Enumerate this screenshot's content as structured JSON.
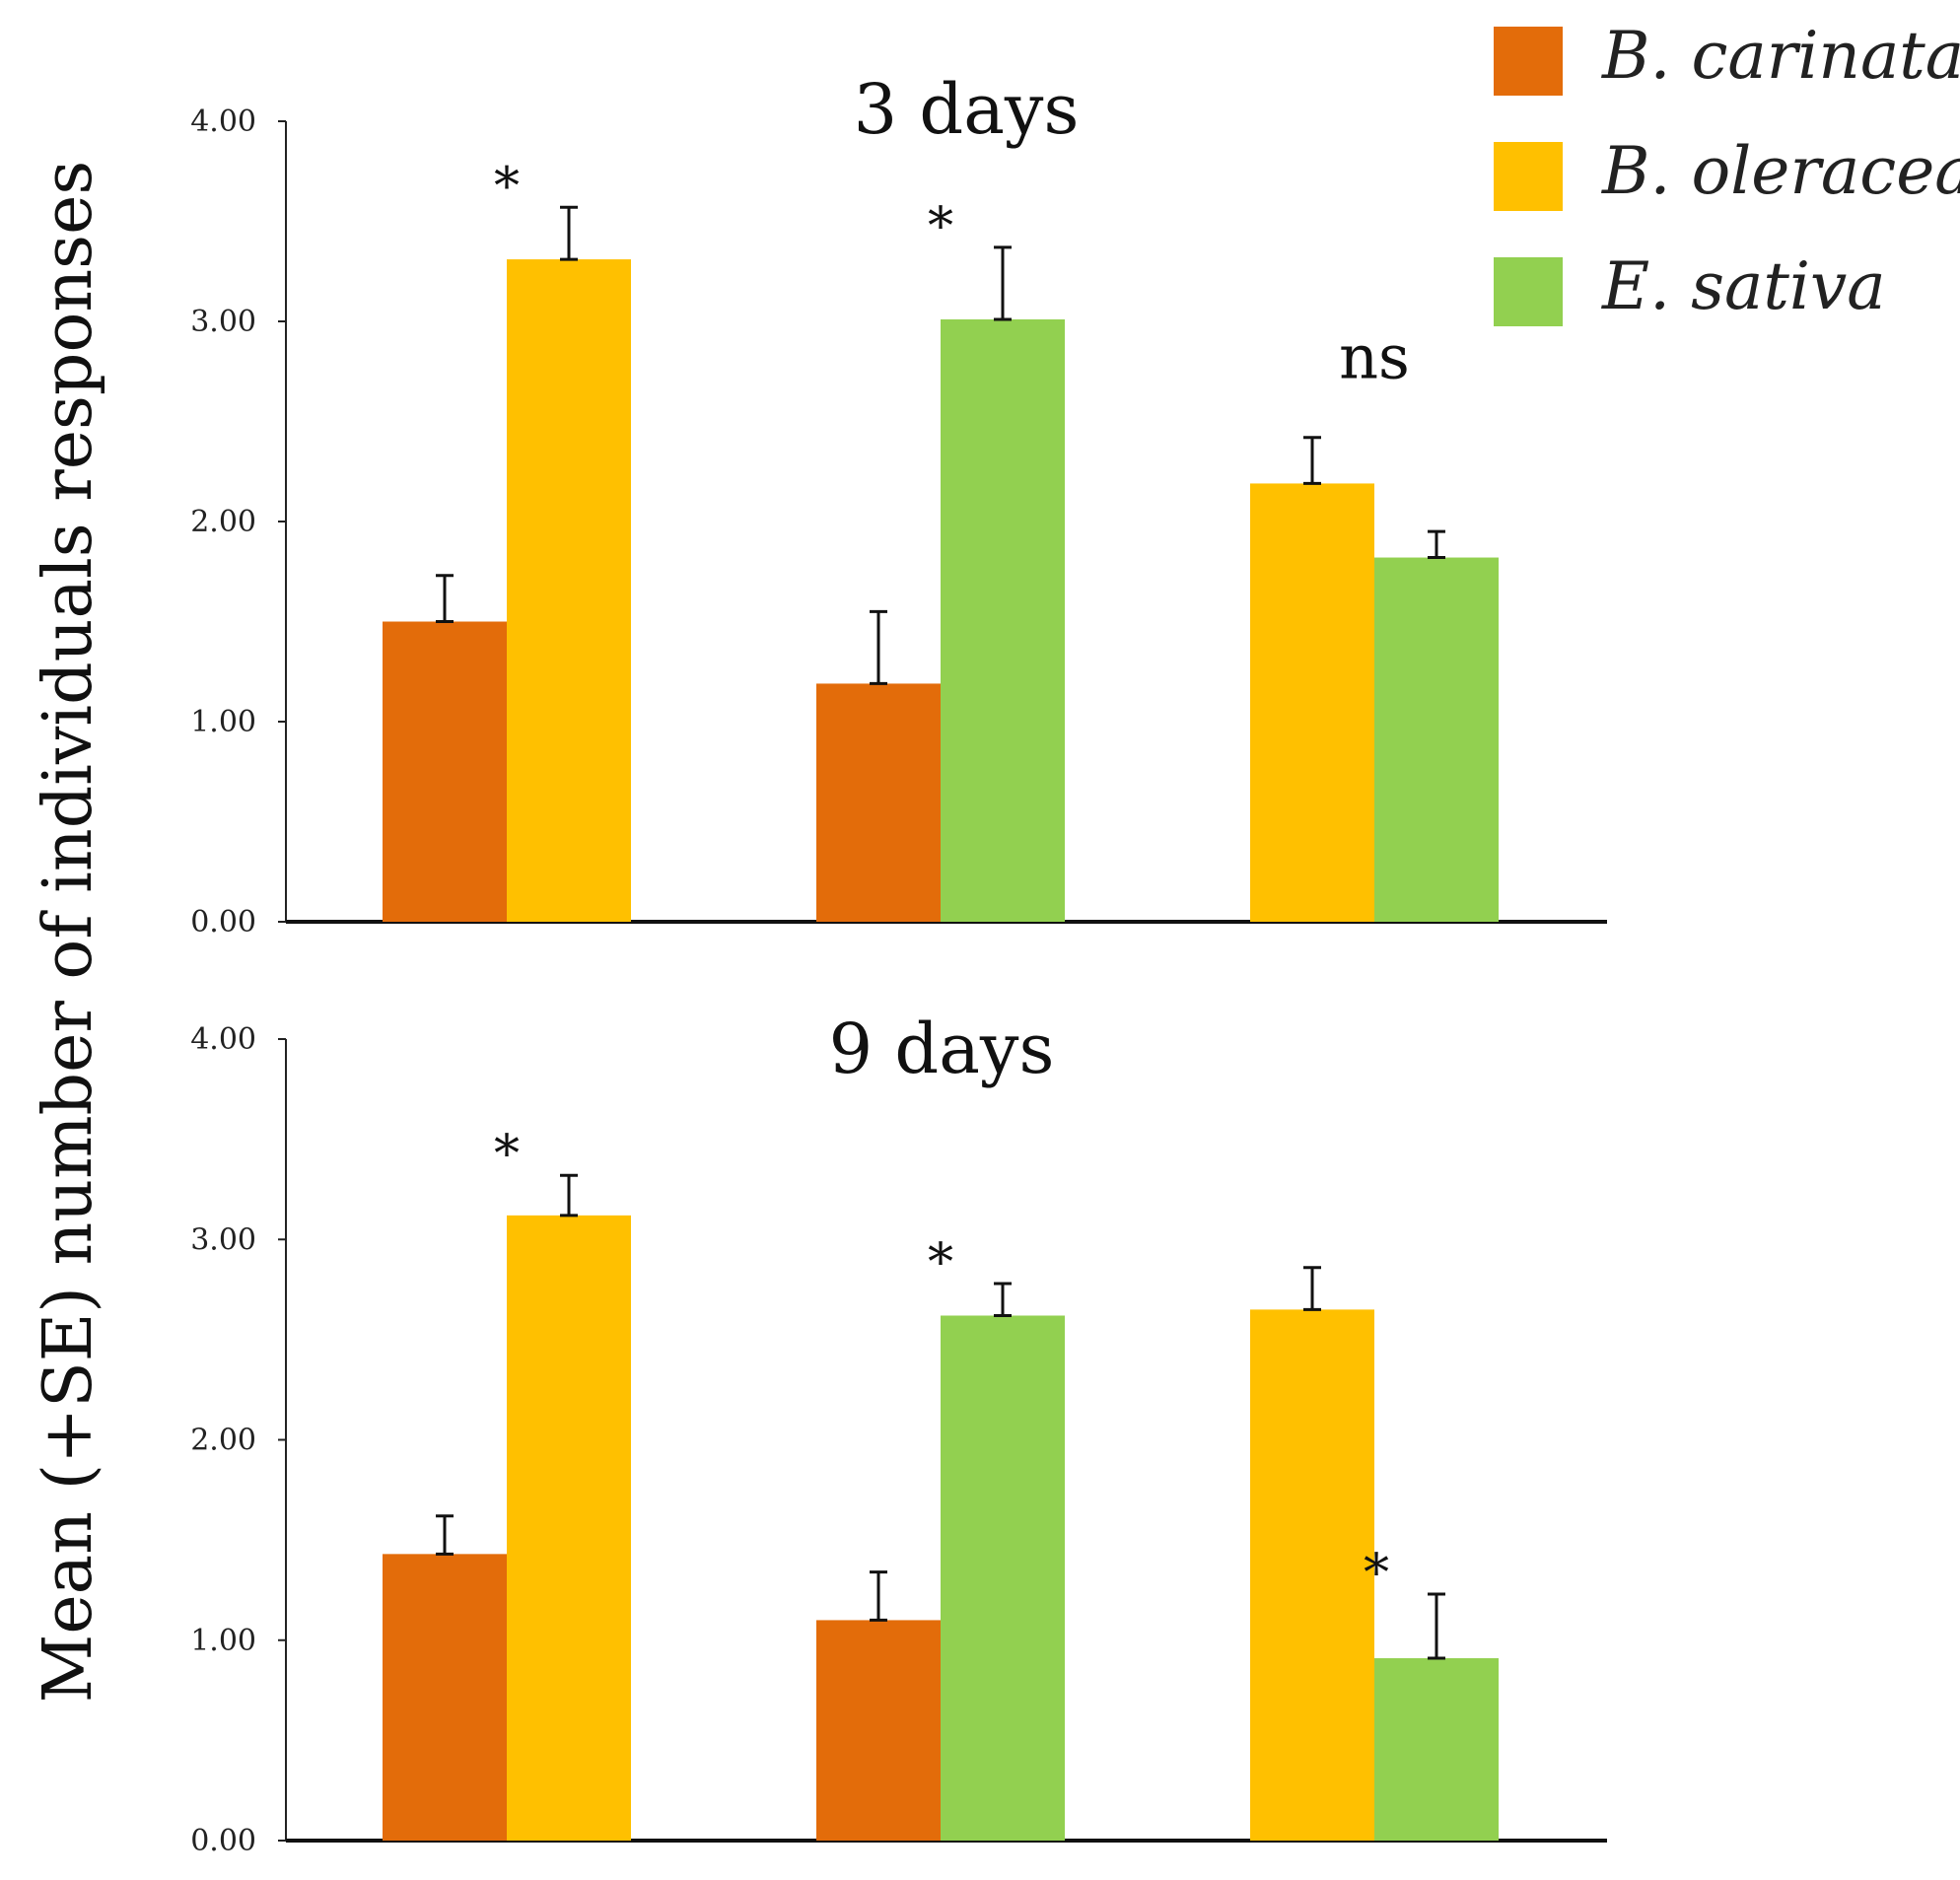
{
  "chart_data": {
    "type": "bar",
    "ylabel": "Mean (+SE) number of individuals responses",
    "ylim": [
      0,
      4
    ],
    "yticks": [
      "0.00",
      "1.00",
      "2.00",
      "3.00",
      "4.00"
    ],
    "legend": [
      {
        "name": "B. carinata",
        "color": "#E36C0A"
      },
      {
        "name": "B. oleracea",
        "color": "#FFC000"
      },
      {
        "name": "E. sativa",
        "color": "#92D050"
      }
    ],
    "panels": [
      {
        "title": "3 days",
        "groups": [
          {
            "bars": [
              {
                "series": "B. carinata",
                "value": 1.5,
                "se": 0.23
              },
              {
                "series": "B. oleracea",
                "value": 3.31,
                "se": 0.26
              }
            ],
            "significance": "*"
          },
          {
            "bars": [
              {
                "series": "B. carinata",
                "value": 1.19,
                "se": 0.36
              },
              {
                "series": "E. sativa",
                "value": 3.01,
                "se": 0.36
              }
            ],
            "significance": "*"
          },
          {
            "bars": [
              {
                "series": "B. oleracea",
                "value": 2.19,
                "se": 0.23
              },
              {
                "series": "E. sativa",
                "value": 1.82,
                "se": 0.13
              }
            ],
            "significance": "ns"
          }
        ]
      },
      {
        "title": "9 days",
        "groups": [
          {
            "bars": [
              {
                "series": "B. carinata",
                "value": 1.43,
                "se": 0.19
              },
              {
                "series": "B. oleracea",
                "value": 3.12,
                "se": 0.2
              }
            ],
            "significance": "*"
          },
          {
            "bars": [
              {
                "series": "B. carinata",
                "value": 1.1,
                "se": 0.24
              },
              {
                "series": "E. sativa",
                "value": 2.62,
                "se": 0.16
              }
            ],
            "significance": "*"
          },
          {
            "bars": [
              {
                "series": "B. oleracea",
                "value": 2.65,
                "se": 0.21
              },
              {
                "series": "E. sativa",
                "value": 0.91,
                "se": 0.32
              }
            ],
            "significance": "*"
          }
        ]
      }
    ]
  }
}
